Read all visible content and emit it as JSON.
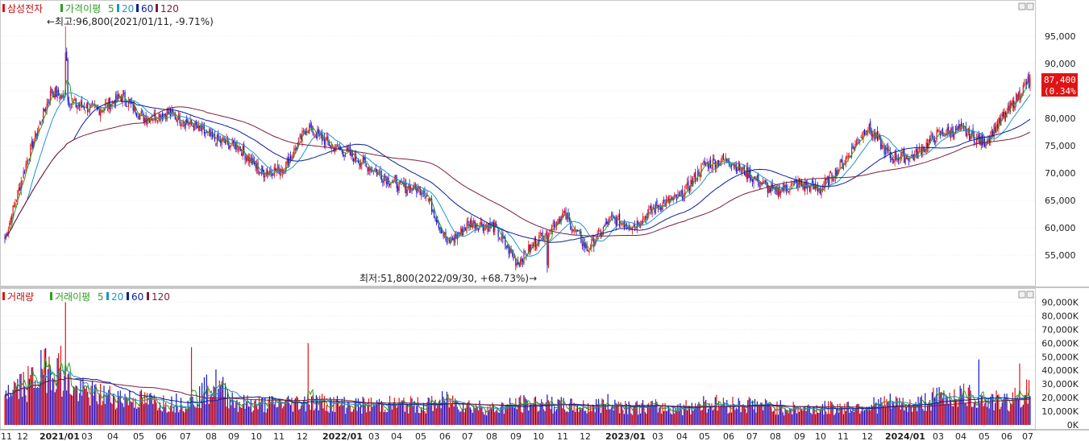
{
  "price_panel": {
    "legend": {
      "symbol": "삼성전자",
      "ma_label": "가격이평",
      "periods": [
        "5",
        "20",
        "60",
        "120"
      ]
    },
    "high_annotation": "←최고:96,800(2021/01/11, -9.71%)",
    "low_annotation": "최저:51,800(2022/09/30, +68.73%)→",
    "last_price_label": "87,400",
    "last_change_label": "(0.34%)",
    "y_ticks": [
      "95,000",
      "90,000",
      "85,000",
      "80,000",
      "75,000",
      "70,000",
      "65,000",
      "60,000",
      "55,000"
    ]
  },
  "volume_panel": {
    "legend": {
      "label": "거래량",
      "ma_label": "거래이평",
      "periods": [
        "5",
        "20",
        "60",
        "120"
      ]
    },
    "y_ticks": [
      "90,000K",
      "80,000K",
      "70,000K",
      "60,000K",
      "50,000K",
      "40,000K",
      "30,000K",
      "20,000K",
      "10,000K",
      "0K"
    ]
  },
  "x_axis_labels": [
    "11",
    "12",
    "2021/01",
    "03",
    "04",
    "05",
    "06",
    "07",
    "08",
    "09",
    "10",
    "11",
    "12",
    "2022/01",
    "03",
    "04",
    "05",
    "06",
    "07",
    "08",
    "09",
    "10",
    "11",
    "12",
    "2023/01",
    "03",
    "04",
    "05",
    "06",
    "07",
    "08",
    "09",
    "10",
    "11",
    "12",
    "2024/01",
    "03",
    "04",
    "05",
    "06",
    "07"
  ],
  "colors": {
    "up": "#e01414",
    "down": "#1414d2",
    "ma5": "#2e9e20",
    "ma20": "#1e96c8",
    "ma60": "#0a1e9b",
    "ma120": "#7a1e3c",
    "last_price_bg": "#e01414"
  },
  "chart_data": [
    {
      "type": "candlestick",
      "title": "삼성전자",
      "ylim": [
        50000,
        98000
      ],
      "y_ticks": [
        95000,
        90000,
        85000,
        80000,
        75000,
        70000,
        65000,
        60000,
        55000
      ],
      "moving_averages": [
        5,
        20,
        60,
        120
      ],
      "x": [
        "2020/11",
        "2020/12",
        "2021/01",
        "2021/02",
        "2021/03",
        "2021/04",
        "2021/05",
        "2021/06",
        "2021/07",
        "2021/08",
        "2021/09",
        "2021/10",
        "2021/11",
        "2021/12",
        "2022/01",
        "2022/02",
        "2022/03",
        "2022/04",
        "2022/05",
        "2022/06",
        "2022/07",
        "2022/08",
        "2022/09",
        "2022/10",
        "2022/11",
        "2022/12",
        "2023/01",
        "2023/02",
        "2023/03",
        "2023/04",
        "2023/05",
        "2023/06",
        "2023/07",
        "2023/08",
        "2023/09",
        "2023/10",
        "2023/11",
        "2023/12",
        "2024/01",
        "2024/02",
        "2024/03",
        "2024/04",
        "2024/05",
        "2024/06",
        "2024/07"
      ],
      "close": [
        58000,
        73000,
        85000,
        82500,
        81500,
        84000,
        80000,
        81000,
        79000,
        76000,
        75000,
        70000,
        71000,
        78500,
        75000,
        73000,
        70000,
        67500,
        67000,
        57000,
        61000,
        60000,
        53500,
        58500,
        62500,
        56000,
        61500,
        60500,
        64000,
        65500,
        71500,
        72500,
        69500,
        66500,
        68000,
        67000,
        72000,
        78500,
        73000,
        73000,
        77000,
        78000,
        75500,
        81000,
        87400
      ],
      "high": 96800,
      "high_date": "2021/01/11",
      "low": 51800,
      "low_date": "2022/09/30",
      "last": 87400,
      "last_change_pct": 0.34
    },
    {
      "type": "bar",
      "title": "거래량",
      "ylabel": "K",
      "ylim": [
        0,
        95000
      ],
      "y_ticks": [
        90000,
        80000,
        70000,
        60000,
        50000,
        40000,
        30000,
        20000,
        10000,
        0
      ],
      "moving_averages": [
        5,
        20,
        60,
        120
      ],
      "x": [
        "2020/11",
        "2020/12",
        "2021/01",
        "2021/02",
        "2021/03",
        "2021/04",
        "2021/05",
        "2021/06",
        "2021/07",
        "2021/08",
        "2021/09",
        "2021/10",
        "2021/11",
        "2021/12",
        "2022/01",
        "2022/02",
        "2022/03",
        "2022/04",
        "2022/05",
        "2022/06",
        "2022/07",
        "2022/08",
        "2022/09",
        "2022/10",
        "2022/11",
        "2022/12",
        "2023/01",
        "2023/02",
        "2023/03",
        "2023/04",
        "2023/05",
        "2023/06",
        "2023/07",
        "2023/08",
        "2023/09",
        "2023/10",
        "2023/11",
        "2023/12",
        "2024/01",
        "2024/02",
        "2024/03",
        "2024/04",
        "2024/05",
        "2024/06",
        "2024/07"
      ],
      "values": [
        25000,
        30000,
        45000,
        25000,
        22000,
        20000,
        18000,
        16000,
        17000,
        30000,
        16000,
        15000,
        16000,
        17000,
        16000,
        14000,
        15000,
        15000,
        14000,
        18000,
        14000,
        12000,
        15000,
        16000,
        14000,
        13000,
        16000,
        13000,
        13000,
        12000,
        16000,
        15000,
        15000,
        13000,
        12000,
        12000,
        13000,
        14000,
        16000,
        14000,
        20000,
        22000,
        18000,
        17000,
        25000
      ],
      "peak": 90000
    }
  ]
}
